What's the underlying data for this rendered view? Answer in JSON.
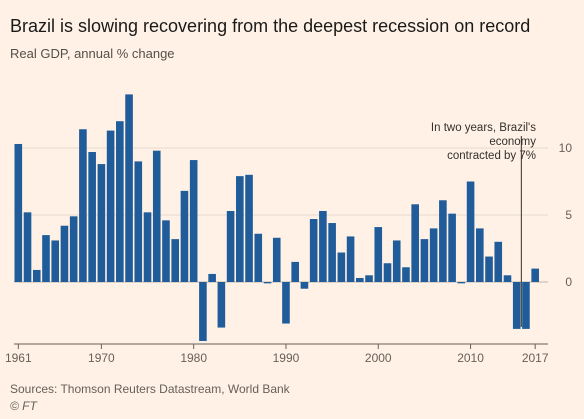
{
  "header": {
    "title": "Brazil is slowing recovering from the deepest recession on record",
    "subtitle": "Real GDP, annual % change"
  },
  "footer": {
    "source": "Sources: Thomson Reuters Datastream, World Bank",
    "copyright": "© FT"
  },
  "colors": {
    "background": "#fff1e5",
    "bar": "#1f5c99",
    "grid": "#e6d9ce",
    "text": "#33302e"
  },
  "chart_data": {
    "type": "bar",
    "title": "Brazil is slowing recovering from the deepest recession on record",
    "subtitle": "Real GDP, annual % change",
    "x": [
      1961,
      1962,
      1963,
      1964,
      1965,
      1966,
      1967,
      1968,
      1969,
      1970,
      1971,
      1972,
      1973,
      1974,
      1975,
      1976,
      1977,
      1978,
      1979,
      1980,
      1981,
      1982,
      1983,
      1984,
      1985,
      1986,
      1987,
      1988,
      1989,
      1990,
      1991,
      1992,
      1993,
      1994,
      1995,
      1996,
      1997,
      1998,
      1999,
      2000,
      2001,
      2002,
      2003,
      2004,
      2005,
      2006,
      2007,
      2008,
      2009,
      2010,
      2011,
      2012,
      2013,
      2014,
      2015,
      2016,
      2017
    ],
    "values": [
      10.3,
      5.2,
      0.9,
      3.5,
      3.1,
      4.2,
      4.9,
      11.4,
      9.7,
      8.8,
      11.3,
      12.0,
      14.0,
      9.0,
      5.2,
      9.8,
      4.6,
      3.2,
      6.8,
      9.1,
      -4.4,
      0.6,
      -3.4,
      5.3,
      7.9,
      8.0,
      3.6,
      -0.1,
      3.3,
      -3.1,
      1.5,
      -0.5,
      4.7,
      5.3,
      4.4,
      2.2,
      3.4,
      0.3,
      0.5,
      4.1,
      1.4,
      3.1,
      1.1,
      5.8,
      3.2,
      4.0,
      6.1,
      5.1,
      -0.1,
      7.5,
      4.0,
      1.9,
      3.0,
      0.5,
      -3.5,
      -3.5,
      1.0
    ],
    "x_tick_labels": [
      "1961",
      "1970",
      "1980",
      "1990",
      "2000",
      "2010",
      "2017"
    ],
    "y_ticks": [
      0,
      5,
      10
    ],
    "y_tick_labels": [
      "0",
      "5",
      "10"
    ],
    "ylim": [
      -4.5,
      14.5
    ],
    "grid": true,
    "y_axis_side": "right",
    "annotation": {
      "lines": [
        "In two years, Brazil's",
        "economy",
        "contracted by 7%"
      ],
      "x": 2015.5
    }
  }
}
